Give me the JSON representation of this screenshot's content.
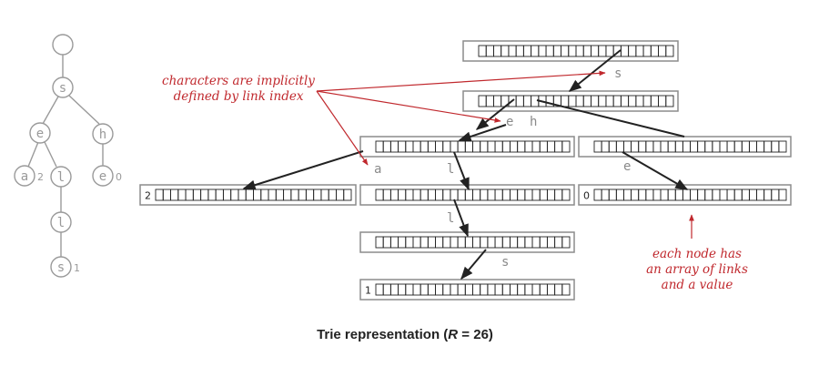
{
  "caption": {
    "prefix": "Trie representation (",
    "var": "R",
    "suffix": " = 26)"
  },
  "annotations": {
    "implicit_line1": "characters are implicitly",
    "implicit_line2": "defined by link index",
    "node_line1": "each node has",
    "node_line2": "an array of links",
    "node_line3": "and a value"
  },
  "tree": {
    "nodes": [
      {
        "id": "root",
        "label": "",
        "value": ""
      },
      {
        "id": "s",
        "label": "s",
        "value": ""
      },
      {
        "id": "e",
        "label": "e",
        "value": ""
      },
      {
        "id": "h",
        "label": "h",
        "value": ""
      },
      {
        "id": "a",
        "label": "a",
        "value": "2"
      },
      {
        "id": "l1",
        "label": "l",
        "value": ""
      },
      {
        "id": "e2",
        "label": "e",
        "value": "0"
      },
      {
        "id": "l2",
        "label": "l",
        "value": ""
      },
      {
        "id": "s2",
        "label": "s",
        "value": "1"
      }
    ]
  },
  "link_arrays": {
    "link_count": 26,
    "nodes": [
      {
        "id": "root",
        "value": ""
      },
      {
        "id": "s",
        "value": ""
      },
      {
        "id": "e",
        "value": ""
      },
      {
        "id": "h",
        "value": ""
      },
      {
        "id": "a",
        "value": "2"
      },
      {
        "id": "el",
        "value": ""
      },
      {
        "id": "he",
        "value": "0"
      },
      {
        "id": "ell",
        "value": ""
      },
      {
        "id": "ells",
        "value": "1"
      }
    ],
    "char_labels": [
      "s",
      "e",
      "h",
      "a",
      "l",
      "e",
      "l",
      "s"
    ]
  },
  "colors": {
    "gray": "#9a9a9a",
    "dark": "#222222",
    "red": "#c0282d",
    "nodeFill": "#ffffff"
  }
}
